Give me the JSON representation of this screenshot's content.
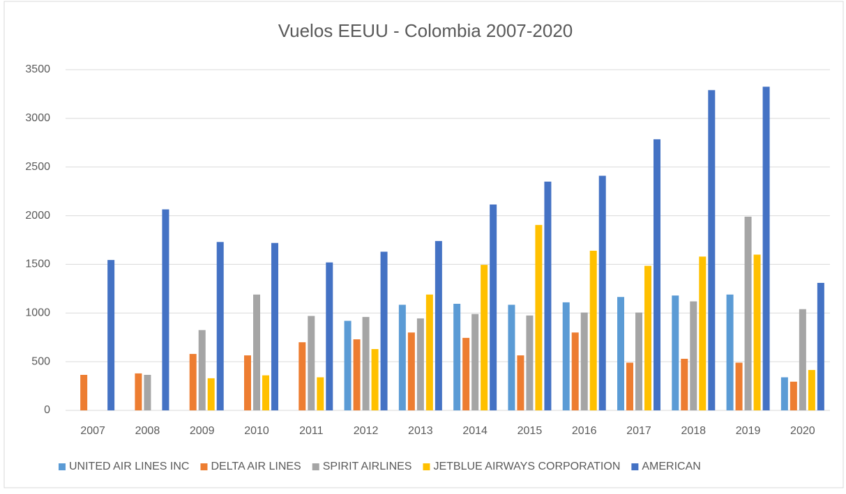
{
  "chart_data": {
    "type": "bar",
    "title": "Vuelos EEUU - Colombia 2007-2020",
    "categories": [
      "2007",
      "2008",
      "2009",
      "2010",
      "2011",
      "2012",
      "2013",
      "2014",
      "2015",
      "2016",
      "2017",
      "2018",
      "2019",
      "2020"
    ],
    "series": [
      {
        "name": "UNITED AIR LINES INC",
        "color": "#5B9BD5",
        "values": [
          0,
          0,
          0,
          0,
          0,
          920,
          1085,
          1095,
          1085,
          1110,
          1165,
          1180,
          1190,
          340
        ]
      },
      {
        "name": "DELTA AIR LINES",
        "color": "#ED7D31",
        "values": [
          365,
          380,
          580,
          565,
          700,
          730,
          800,
          745,
          565,
          800,
          490,
          530,
          490,
          295
        ]
      },
      {
        "name": "SPIRIT AIRLINES",
        "color": "#A5A5A5",
        "values": [
          0,
          365,
          825,
          1190,
          970,
          960,
          945,
          990,
          975,
          1005,
          1005,
          1120,
          1990,
          1040
        ]
      },
      {
        "name": "JETBLUE AIRWAYS CORPORATION",
        "color": "#FFC000",
        "values": [
          0,
          0,
          330,
          360,
          340,
          630,
          1190,
          1495,
          1905,
          1640,
          1485,
          1580,
          1600,
          415
        ]
      },
      {
        "name": "AMERICAN",
        "color": "#4472C4",
        "values": [
          1545,
          2065,
          1730,
          1720,
          1520,
          1630,
          1740,
          2115,
          2350,
          2410,
          2785,
          3290,
          3325,
          1310
        ]
      }
    ],
    "ylim": [
      0,
      3500
    ],
    "yticks": [
      0,
      500,
      1000,
      1500,
      2000,
      2500,
      3000,
      3500
    ],
    "grid": true,
    "legend": "bottom"
  }
}
